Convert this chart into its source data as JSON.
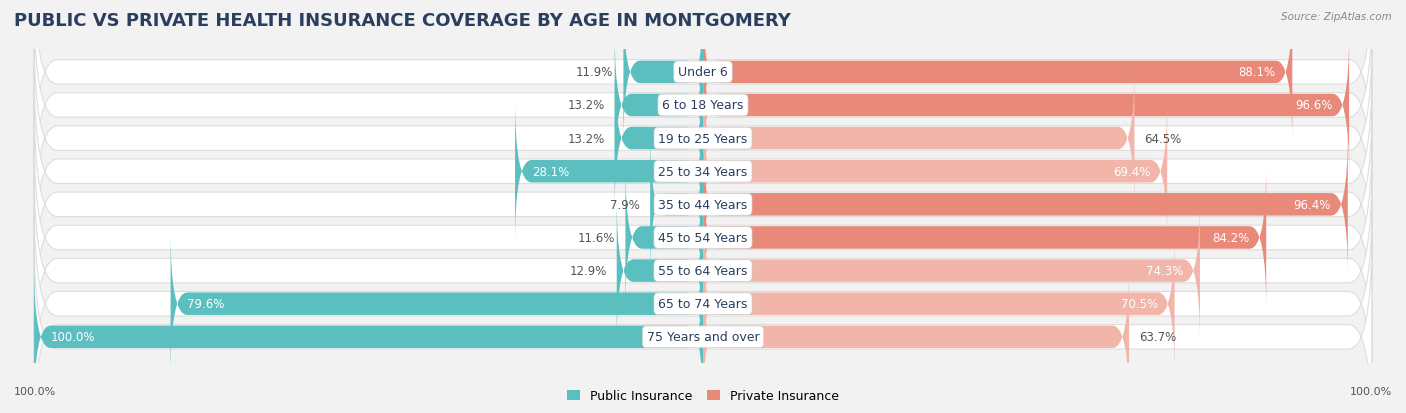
{
  "title": "PUBLIC VS PRIVATE HEALTH INSURANCE COVERAGE BY AGE IN MONTGOMERY",
  "source": "Source: ZipAtlas.com",
  "categories": [
    "Under 6",
    "6 to 18 Years",
    "19 to 25 Years",
    "25 to 34 Years",
    "35 to 44 Years",
    "45 to 54 Years",
    "55 to 64 Years",
    "65 to 74 Years",
    "75 Years and over"
  ],
  "public_values": [
    11.9,
    13.2,
    13.2,
    28.1,
    7.9,
    11.6,
    12.9,
    79.6,
    100.0
  ],
  "private_values": [
    88.1,
    96.6,
    64.5,
    69.4,
    96.4,
    84.2,
    74.3,
    70.5,
    63.7
  ],
  "public_color": "#5bbfc0",
  "private_color": "#e8897a",
  "private_color_light": "#f2b5aa",
  "background_color": "#f2f2f2",
  "row_bg_color": "#ffffff",
  "row_border_color": "#dddddd",
  "max_value": 100.0,
  "title_fontsize": 13,
  "label_fontsize": 9,
  "value_fontsize": 8.5,
  "bar_height": 0.68,
  "legend_labels": [
    "Public Insurance",
    "Private Insurance"
  ],
  "left_label": "100.0%",
  "right_label": "100.0%"
}
